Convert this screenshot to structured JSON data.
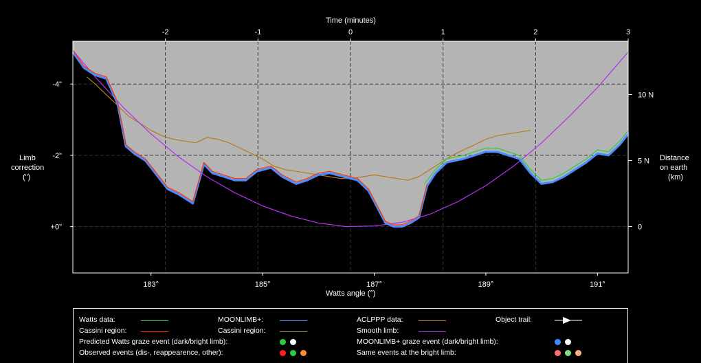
{
  "chart_data": {
    "type": "line",
    "title": "",
    "xlabel": "Watts angle (°)",
    "x_ticks": [
      183,
      185,
      187,
      189,
      191
    ],
    "x_tick_labels": [
      "183°",
      "185°",
      "187°",
      "189°",
      "191°"
    ],
    "xlim": [
      181.6,
      191.55
    ],
    "top_axis": {
      "label": "Time (minutes)",
      "ticks": [
        -2,
        -1,
        0,
        1,
        2,
        3
      ],
      "tick_labels": [
        "-2",
        "-1",
        "0",
        "1",
        "2",
        "3"
      ],
      "minutes_range": [
        -3.0,
        3.0
      ]
    },
    "left_axis": {
      "label_lines": [
        "Limb",
        "correction",
        "(\")"
      ],
      "ticks": [
        -4,
        -2,
        0
      ],
      "tick_labels": [
        "-4\"",
        "-2\"",
        "+0\""
      ],
      "ylim": [
        1.3,
        -5.2
      ]
    },
    "right_axis": {
      "label_lines": [
        "Distance",
        "on earth",
        "(km)"
      ],
      "ticks": [
        10,
        5,
        0
      ],
      "tick_labels": [
        "10 N",
        "5 N",
        "0"
      ],
      "km_per_arcsec": 2.7
    },
    "grid": true,
    "series": [
      {
        "name": "Watts data",
        "color": "#2ecc40",
        "x": [
          187.9,
          188.1,
          188.3,
          188.6,
          188.8,
          189.0,
          189.2,
          189.4,
          189.6,
          189.8,
          190.0,
          190.2,
          190.4,
          190.6,
          190.8,
          191.0,
          191.2,
          191.4,
          191.55
        ],
        "y": [
          -1.2,
          -1.6,
          -1.9,
          -2.0,
          -2.1,
          -2.2,
          -2.2,
          -2.1,
          -2.0,
          -1.6,
          -1.3,
          -1.35,
          -1.5,
          -1.7,
          -1.9,
          -2.15,
          -2.1,
          -2.4,
          -2.7
        ]
      },
      {
        "name": "Cassini region",
        "color": "#ff3300",
        "x": [
          181.6,
          181.8,
          182.0,
          182.2,
          182.4,
          182.55,
          182.7,
          182.9,
          183.1,
          183.3,
          183.5,
          183.75,
          183.95,
          184.1,
          184.3,
          184.5,
          184.7,
          184.9,
          185.15,
          185.35,
          185.6,
          185.8,
          186.0,
          186.2,
          186.45,
          186.7,
          186.9,
          187.05,
          187.2,
          187.35,
          187.5,
          187.65,
          187.8,
          187.95
        ],
        "y": [
          -4.95,
          -4.5,
          -4.3,
          -4.2,
          -3.5,
          -2.3,
          -2.1,
          -1.9,
          -1.5,
          -1.1,
          -0.95,
          -0.7,
          -1.8,
          -1.55,
          -1.45,
          -1.35,
          -1.35,
          -1.6,
          -1.7,
          -1.45,
          -1.25,
          -1.35,
          -1.5,
          -1.55,
          -1.45,
          -1.35,
          -1.05,
          -0.6,
          -0.15,
          -0.05,
          -0.05,
          -0.15,
          -0.3,
          -1.2
        ]
      },
      {
        "name": "MOONLIMB+",
        "color": "#4a8cff",
        "x": [
          181.6,
          181.8,
          182.0,
          182.2,
          182.4,
          182.55,
          182.7,
          182.9,
          183.1,
          183.3,
          183.5,
          183.75,
          183.95,
          184.1,
          184.3,
          184.5,
          184.7,
          184.9,
          185.15,
          185.35,
          185.6,
          185.8,
          186.0,
          186.2,
          186.45,
          186.7,
          186.9,
          187.05,
          187.2,
          187.35,
          187.5,
          187.65,
          187.8,
          187.95,
          188.1,
          188.3,
          188.6,
          188.8,
          189.0,
          189.2,
          189.4,
          189.6,
          189.8,
          190.0,
          190.2,
          190.4,
          190.6,
          190.8,
          191.0,
          191.2,
          191.4,
          191.55
        ],
        "y": [
          -4.9,
          -4.45,
          -4.25,
          -4.15,
          -3.45,
          -2.25,
          -2.05,
          -1.85,
          -1.45,
          -1.05,
          -0.9,
          -0.65,
          -1.75,
          -1.5,
          -1.4,
          -1.3,
          -1.3,
          -1.55,
          -1.65,
          -1.4,
          -1.2,
          -1.3,
          -1.45,
          -1.5,
          -1.4,
          -1.3,
          -1.0,
          -0.55,
          -0.1,
          0.0,
          0.0,
          -0.1,
          -0.25,
          -1.15,
          -1.5,
          -1.8,
          -1.9,
          -2.0,
          -2.1,
          -2.1,
          -2.0,
          -1.9,
          -1.5,
          -1.2,
          -1.25,
          -1.4,
          -1.6,
          -1.8,
          -2.05,
          -2.0,
          -2.3,
          -2.6
        ]
      },
      {
        "name": "ACLPPP data",
        "color": "#b87a1c",
        "x": [
          181.85,
          182.0,
          182.2,
          182.4,
          182.6,
          182.8,
          183.0,
          183.2,
          183.4,
          183.6,
          183.8,
          184.0,
          184.2,
          184.4,
          184.6,
          184.8,
          185.0,
          185.2,
          185.4,
          185.6,
          185.8,
          186.0,
          186.2,
          186.4,
          186.6,
          186.8,
          187.0,
          187.2,
          187.4,
          187.6,
          187.8,
          188.0,
          188.2,
          188.4,
          188.6,
          188.8,
          189.0,
          189.2,
          189.4,
          189.6,
          189.8
        ],
        "y": [
          -4.2,
          -4.0,
          -3.7,
          -3.4,
          -3.1,
          -2.9,
          -2.7,
          -2.55,
          -2.45,
          -2.4,
          -2.35,
          -2.5,
          -2.45,
          -2.35,
          -2.2,
          -2.05,
          -1.9,
          -1.7,
          -1.6,
          -1.55,
          -1.5,
          -1.45,
          -1.4,
          -1.35,
          -1.35,
          -1.4,
          -1.45,
          -1.4,
          -1.35,
          -1.3,
          -1.4,
          -1.6,
          -1.8,
          -2.0,
          -2.15,
          -2.3,
          -2.45,
          -2.55,
          -2.6,
          -2.65,
          -2.7
        ]
      },
      {
        "name": "Smooth limb",
        "color": "#b030f0",
        "x": [
          181.6,
          182.0,
          182.5,
          183.0,
          183.5,
          184.0,
          184.5,
          185.0,
          185.5,
          186.0,
          186.5,
          187.0,
          187.5,
          188.0,
          188.5,
          189.0,
          189.5,
          190.0,
          190.5,
          191.0,
          191.55
        ],
        "y": [
          -4.95,
          -4.2,
          -3.35,
          -2.6,
          -1.95,
          -1.4,
          -0.95,
          -0.58,
          -0.3,
          -0.1,
          0.0,
          -0.02,
          -0.12,
          -0.35,
          -0.7,
          -1.15,
          -1.7,
          -2.35,
          -3.1,
          -3.9,
          -4.9
        ]
      }
    ],
    "legend": {
      "placement": "bottom",
      "entries": [
        {
          "label": "Watts data:",
          "kind": "line",
          "color": "#2ecc40"
        },
        {
          "label": "Cassini region:",
          "kind": "line",
          "color": "#ff3300"
        },
        {
          "label": "MOONLIMB+:",
          "kind": "line",
          "color": "#4a8cff"
        },
        {
          "label": "Cassini region:",
          "kind": "line",
          "color": "#a08a3c"
        },
        {
          "label": "ACLPPP data:",
          "kind": "line",
          "color": "#b87a1c"
        },
        {
          "label": "Smooth limb:",
          "kind": "line",
          "color": "#b030f0"
        },
        {
          "label": "Object trail:",
          "kind": "arrow",
          "color": "#ffffff"
        },
        {
          "label": "Predicted Watts graze event (dark/bright limb):",
          "kind": "dots",
          "colors": [
            "#2ecc40",
            "#ffffff"
          ]
        },
        {
          "label": "MOONLIMB+ graze event (dark/bright limb):",
          "kind": "dots",
          "colors": [
            "#3b8cff",
            "#ffffff"
          ]
        },
        {
          "label": "Observed events (dis-, reappearence, other):",
          "kind": "dots",
          "colors": [
            "#ff2020",
            "#2ecc40",
            "#ff8c33"
          ]
        },
        {
          "label": "Same events at the bright limb:",
          "kind": "dots",
          "colors": [
            "#ff7070",
            "#7fe07f",
            "#ffb080"
          ]
        }
      ]
    }
  }
}
